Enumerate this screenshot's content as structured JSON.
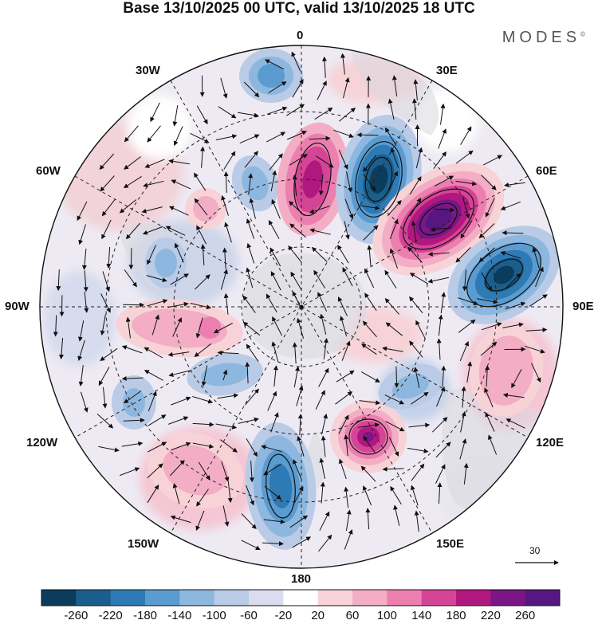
{
  "title": "Base 13/10/2025 00 UTC, valid 13/10/2025 18 UTC",
  "brand": "MODES",
  "brand_mark": "©",
  "longitude_labels": {
    "lon_0": "0",
    "lon_30e": "30E",
    "lon_60e": "60E",
    "lon_90e": "90E",
    "lon_120e": "120E",
    "lon_150e": "150E",
    "lon_180": "180",
    "lon_150w": "150W",
    "lon_120w": "120W",
    "lon_90w": "90W",
    "lon_60w": "60W",
    "lon_30w": "30W"
  },
  "reference_vector": "30",
  "colorbar": {
    "ticks": [
      "-260",
      "-220",
      "-180",
      "-140",
      "-100",
      "-60",
      "-20",
      "20",
      "60",
      "100",
      "140",
      "180",
      "220",
      "260"
    ],
    "colors": [
      "#0b3c5d",
      "#1b5e8c",
      "#2e7ab5",
      "#5a9bd0",
      "#8db7df",
      "#b9cbe6",
      "#dcdcef",
      "#ffffff",
      "#f7d3d8",
      "#f3aec5",
      "#ec7fb0",
      "#d54596",
      "#b01880",
      "#7a1686",
      "#561780"
    ]
  }
}
